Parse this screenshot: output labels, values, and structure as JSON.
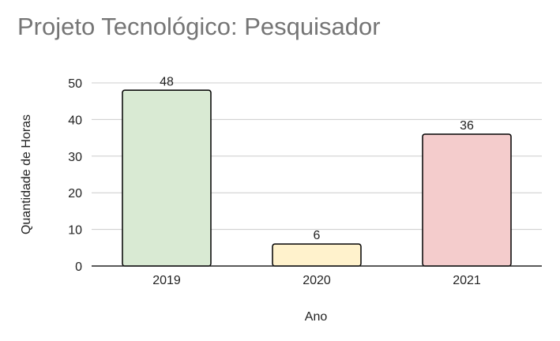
{
  "chart_data": {
    "type": "bar",
    "title": "Projeto Tecnológico: Pesquisador",
    "xlabel": "Ano",
    "ylabel": "Quantidade de Horas",
    "categories": [
      "2019",
      "2020",
      "2021"
    ],
    "values": [
      48,
      6,
      36
    ],
    "bar_colors": [
      "#d9ead3",
      "#fff2cc",
      "#f4cccc"
    ],
    "bar_stroke": "#000000",
    "ylim": [
      0,
      50
    ],
    "yticks": [
      0,
      10,
      20,
      30,
      40,
      50
    ],
    "grid": true,
    "legend": "none",
    "data_labels": true
  }
}
